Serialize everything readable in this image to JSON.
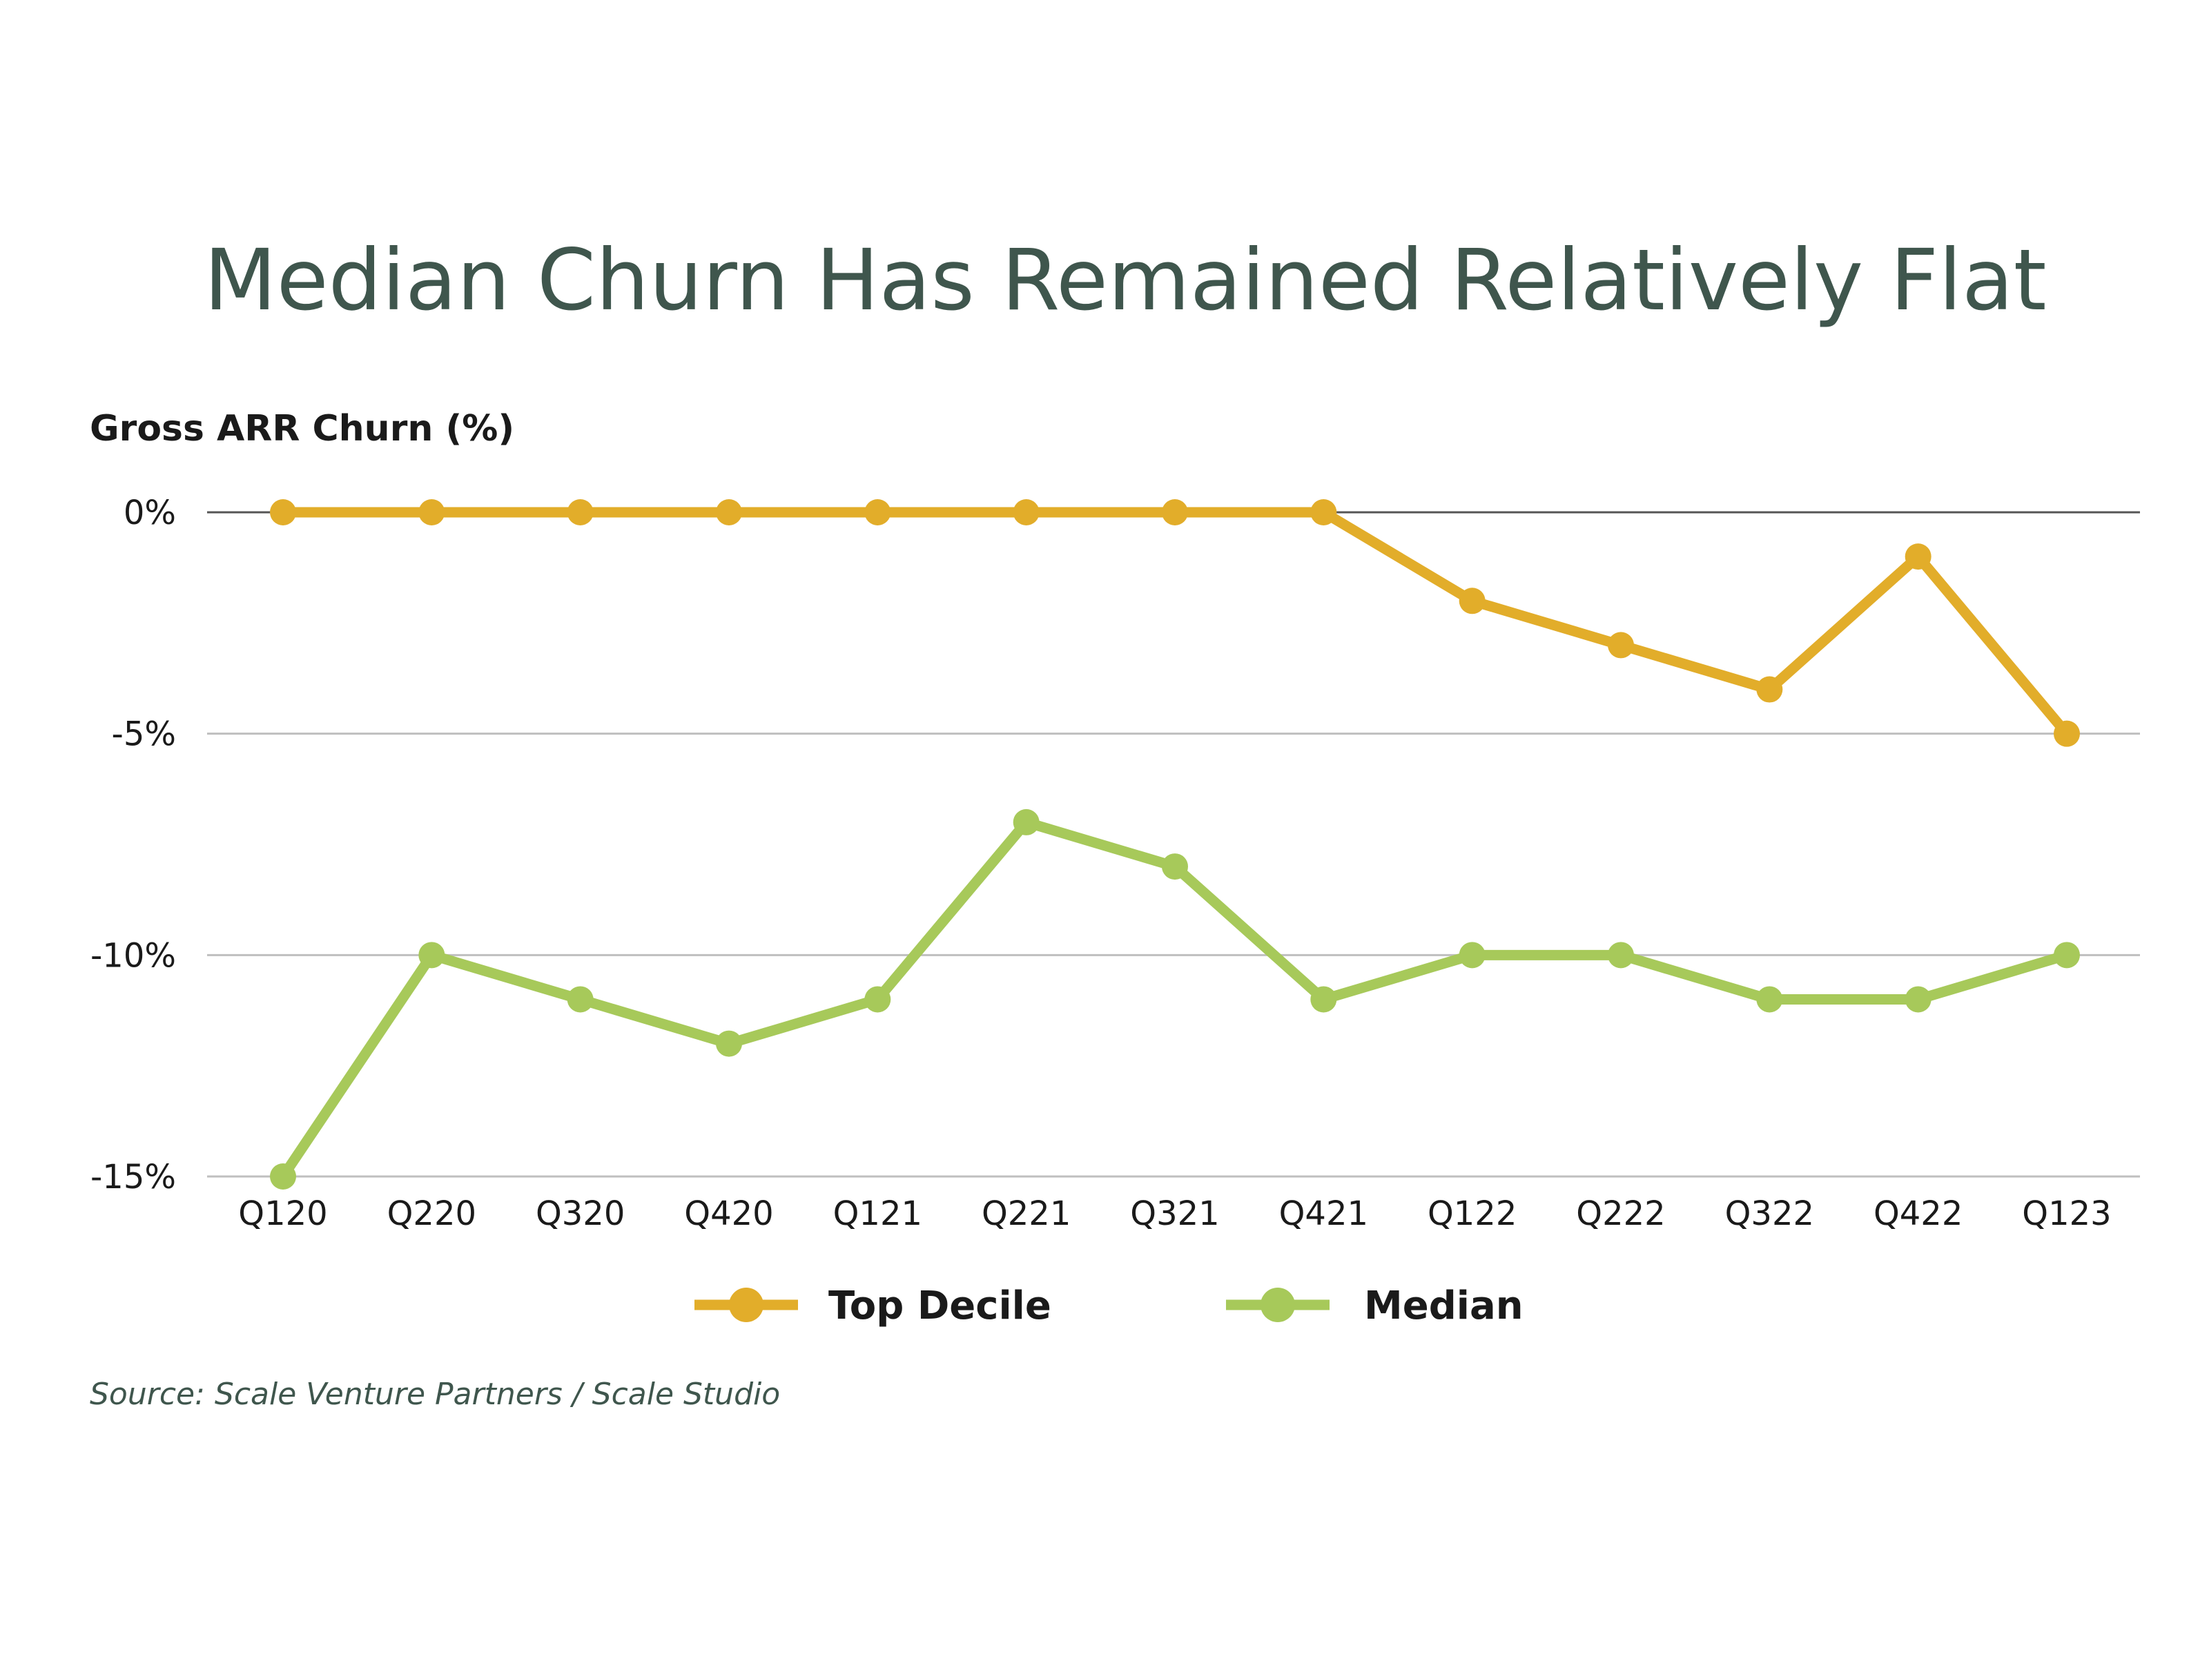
{
  "chart_data": {
    "type": "line",
    "title": "Median Churn Has Remained Relatively Flat",
    "ylabel": "Gross ARR Churn (%)",
    "xlabel": "",
    "categories": [
      "Q120",
      "Q220",
      "Q320",
      "Q420",
      "Q121",
      "Q221",
      "Q321",
      "Q421",
      "Q122",
      "Q222",
      "Q322",
      "Q422",
      "Q123"
    ],
    "ylim": [
      -15,
      0
    ],
    "yticks": [
      0,
      -5,
      -10,
      -15
    ],
    "ytick_labels": [
      "0%",
      "-5%",
      "-10%",
      "-15%"
    ],
    "grid": true,
    "legend_position": "bottom",
    "series": [
      {
        "name": "Top Decile",
        "color": "#e2ad2a",
        "values": [
          0,
          0,
          0,
          0,
          0,
          0,
          0,
          0,
          -2,
          -3,
          -4,
          -1,
          -5
        ]
      },
      {
        "name": "Median",
        "color": "#a7c95a",
        "values": [
          -15,
          -10,
          -11,
          -12,
          -11,
          -7,
          -8,
          -11,
          -10,
          -10,
          -11,
          -11,
          -10
        ]
      }
    ],
    "source": "Source: Scale Venture Partners / Scale Studio"
  },
  "colors": {
    "title": "#3f564d",
    "grid": "#bfbfbf",
    "zero_line": "#555555"
  }
}
